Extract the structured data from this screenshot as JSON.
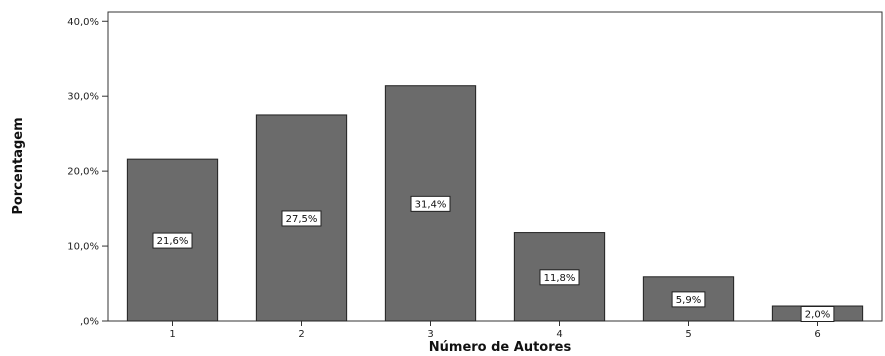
{
  "chart_data": {
    "type": "bar",
    "categories": [
      "1",
      "2",
      "3",
      "4",
      "5",
      "6"
    ],
    "values": [
      21.6,
      27.5,
      31.4,
      11.8,
      5.9,
      2.0
    ],
    "data_labels": [
      "21,6%",
      "27,5%",
      "31,4%",
      "11,8%",
      "5,9%",
      "2,0%"
    ],
    "xlabel": "Número de Autores",
    "ylabel": "Porcentagem",
    "ylim": [
      0,
      40
    ],
    "yticks": [
      0,
      10,
      20,
      30,
      40
    ],
    "ytick_labels": [
      ",0%",
      "10,0%",
      "20,0%",
      "30,0%",
      "40,0%"
    ],
    "grid": false,
    "legend": "none",
    "bar_color": "#6b6b6b",
    "bar_edge_color": "#222222"
  }
}
